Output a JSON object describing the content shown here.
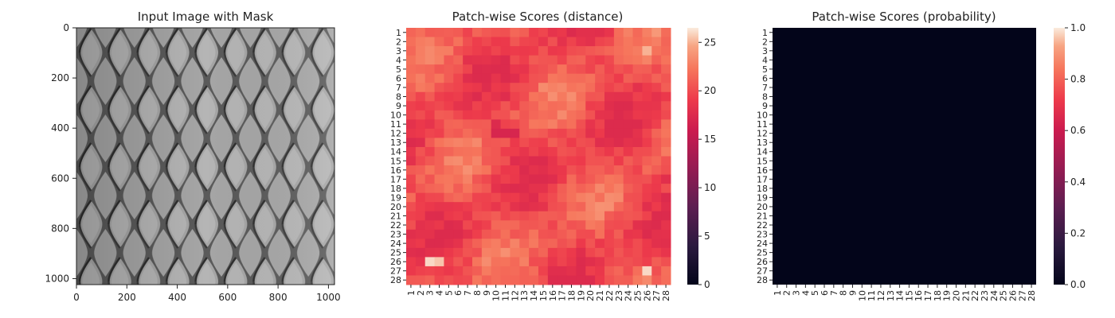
{
  "chart_data": [
    {
      "type": "image",
      "title": "Input Image with Mask",
      "xlim": [
        0,
        1024
      ],
      "ylim": [
        1024,
        0
      ],
      "xticks": [
        "0",
        "200",
        "400",
        "600",
        "800",
        "1000"
      ],
      "yticks": [
        "0",
        "200",
        "400",
        "600",
        "800",
        "1000"
      ],
      "pattern": "diamond-mesh"
    },
    {
      "type": "heatmap",
      "title": "Patch-wise Scores (distance)",
      "rows": [
        "1",
        "2",
        "3",
        "4",
        "5",
        "6",
        "7",
        "8",
        "9",
        "10",
        "11",
        "12",
        "13",
        "14",
        "15",
        "16",
        "17",
        "18",
        "19",
        "20",
        "21",
        "22",
        "23",
        "24",
        "25",
        "26",
        "27",
        "28"
      ],
      "cols": [
        "1",
        "2",
        "3",
        "4",
        "5",
        "6",
        "7",
        "8",
        "9",
        "10",
        "11",
        "12",
        "13",
        "14",
        "15",
        "16",
        "17",
        "18",
        "19",
        "20",
        "21",
        "22",
        "23",
        "24",
        "25",
        "26",
        "27",
        "28"
      ],
      "colorbar": {
        "min": 0,
        "max": 26.5,
        "ticks": [
          "0",
          "5",
          "10",
          "15",
          "20",
          "25"
        ]
      },
      "value_range_observed": [
        16,
        26.5
      ],
      "notable_values": [
        {
          "row": 12,
          "col": 10,
          "value": 17
        },
        {
          "row": 12,
          "col": 11,
          "value": 17
        },
        {
          "row": 12,
          "col": 12,
          "value": 17
        },
        {
          "row": 11,
          "col": 10,
          "value": 17.5
        },
        {
          "row": 23,
          "col": 1,
          "value": 18
        },
        {
          "row": 26,
          "col": 3,
          "value": 26
        },
        {
          "row": 26,
          "col": 4,
          "value": 25.5
        },
        {
          "row": 27,
          "col": 26,
          "value": 26
        },
        {
          "row": 3,
          "col": 26,
          "value": 25
        },
        {
          "row": 2,
          "col": 10,
          "value": 19
        },
        {
          "row": 17,
          "col": 28,
          "value": 18
        },
        {
          "row": 24,
          "col": 28,
          "value": 18
        }
      ]
    },
    {
      "type": "heatmap",
      "title": "Patch-wise Scores (probability)",
      "rows": [
        "1",
        "2",
        "3",
        "4",
        "5",
        "6",
        "7",
        "8",
        "9",
        "10",
        "11",
        "12",
        "13",
        "14",
        "15",
        "16",
        "17",
        "18",
        "19",
        "20",
        "21",
        "22",
        "23",
        "24",
        "25",
        "26",
        "27",
        "28"
      ],
      "cols": [
        "1",
        "2",
        "3",
        "4",
        "5",
        "6",
        "7",
        "8",
        "9",
        "10",
        "11",
        "12",
        "13",
        "14",
        "15",
        "16",
        "17",
        "18",
        "19",
        "20",
        "21",
        "22",
        "23",
        "24",
        "25",
        "26",
        "27",
        "28"
      ],
      "colorbar": {
        "min": 0.0,
        "max": 1.0,
        "ticks": [
          "0.0",
          "0.2",
          "0.4",
          "0.6",
          "0.8",
          "1.0"
        ]
      },
      "all_values_approx": 0.0
    }
  ]
}
